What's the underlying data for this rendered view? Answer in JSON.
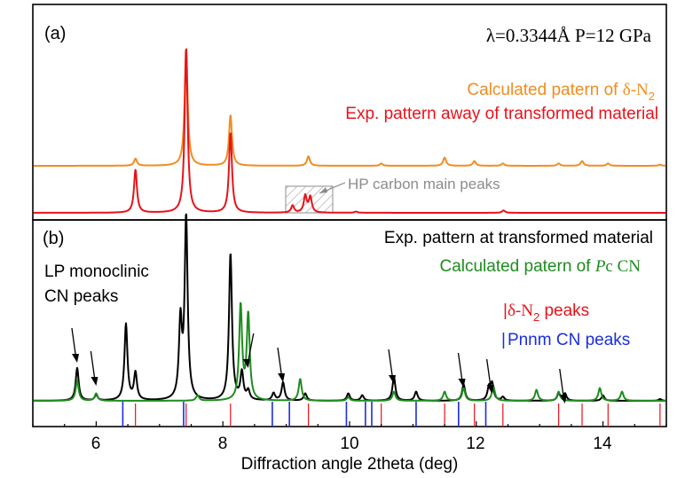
{
  "colors": {
    "calc_delta_n2": "#f28c1e",
    "exp_away": "#e8121a",
    "exp_transformed": "#000000",
    "calc_pc_cn": "#1e8c1e",
    "delta_n2_ticks": "#e8121a",
    "pnnm_ticks": "#1a2de0",
    "annotation_gray": "#8c8c8c"
  },
  "chart_data": [
    {
      "panel": "(a)",
      "type": "line",
      "header": "λ=0.3344Å P=12 GPa",
      "xlim": [
        5,
        15
      ],
      "xticks": [
        6,
        8,
        10,
        12,
        14
      ],
      "series": [
        {
          "name": "Calculated patern of δ-N2",
          "color": "#f28c1e",
          "peaks": [
            {
              "x": 6.62,
              "h": 0.06
            },
            {
              "x": 7.42,
              "h": 1.0
            },
            {
              "x": 8.12,
              "h": 0.43
            },
            {
              "x": 9.35,
              "h": 0.08
            },
            {
              "x": 10.5,
              "h": 0.02
            },
            {
              "x": 11.5,
              "h": 0.07
            },
            {
              "x": 11.97,
              "h": 0.04
            },
            {
              "x": 12.42,
              "h": 0.02
            },
            {
              "x": 13.3,
              "h": 0.02
            },
            {
              "x": 13.67,
              "h": 0.04
            },
            {
              "x": 14.08,
              "h": 0.02
            },
            {
              "x": 14.9,
              "h": 0.01
            }
          ]
        },
        {
          "name": "Exp. pattern  away of transformed material",
          "color": "#e8121a",
          "peaks": [
            {
              "x": 6.62,
              "h": 0.36
            },
            {
              "x": 7.42,
              "h": 1.38
            },
            {
              "x": 8.12,
              "h": 0.67
            },
            {
              "x": 9.1,
              "h": 0.06
            },
            {
              "x": 9.3,
              "h": 0.14
            },
            {
              "x": 9.38,
              "h": 0.13
            },
            {
              "x": 10.1,
              "h": 0.01
            },
            {
              "x": 12.43,
              "h": 0.02
            }
          ]
        }
      ],
      "annotations": [
        "HP carbon main peaks"
      ]
    },
    {
      "panel": "(b)",
      "type": "line",
      "xlabel": "Diffraction angle 2theta (deg)",
      "xlim": [
        5,
        15
      ],
      "xticks": [
        6,
        8,
        10,
        12,
        14
      ],
      "series": [
        {
          "name": "Exp. pattern at transformed material",
          "color": "#000000",
          "peaks": [
            {
              "x": 5.7,
              "h": 0.18
            },
            {
              "x": 6.0,
              "h": 0.03
            },
            {
              "x": 6.47,
              "h": 0.42
            },
            {
              "x": 6.62,
              "h": 0.15
            },
            {
              "x": 7.33,
              "h": 0.42
            },
            {
              "x": 7.42,
              "h": 1.0
            },
            {
              "x": 8.12,
              "h": 0.81
            },
            {
              "x": 8.3,
              "h": 0.15
            },
            {
              "x": 8.4,
              "h": 0.05
            },
            {
              "x": 8.8,
              "h": 0.04
            },
            {
              "x": 8.95,
              "h": 0.1
            },
            {
              "x": 9.3,
              "h": 0.04
            },
            {
              "x": 9.98,
              "h": 0.04
            },
            {
              "x": 10.2,
              "h": 0.03
            },
            {
              "x": 10.7,
              "h": 0.13
            },
            {
              "x": 11.05,
              "h": 0.05
            },
            {
              "x": 11.8,
              "h": 0.09
            },
            {
              "x": 12.2,
              "h": 0.07
            },
            {
              "x": 12.25,
              "h": 0.09
            },
            {
              "x": 12.42,
              "h": 0.02
            },
            {
              "x": 13.3,
              "h": 0.04
            },
            {
              "x": 13.4,
              "h": 0.04
            },
            {
              "x": 14.0,
              "h": 0.03
            },
            {
              "x": 14.9,
              "h": 0.01
            }
          ]
        },
        {
          "name": "Calculated patern of Pc CN",
          "color": "#1e8c1e",
          "peaks": [
            {
              "x": 5.7,
              "h": 0.11
            },
            {
              "x": 6.0,
              "h": 0.04
            },
            {
              "x": 7.6,
              "h": 0.03
            },
            {
              "x": 8.28,
              "h": 0.52
            },
            {
              "x": 8.4,
              "h": 0.47
            },
            {
              "x": 9.22,
              "h": 0.12
            },
            {
              "x": 9.98,
              "h": 0.02
            },
            {
              "x": 10.7,
              "h": 0.05
            },
            {
              "x": 11.5,
              "h": 0.05
            },
            {
              "x": 11.8,
              "h": 0.07
            },
            {
              "x": 12.27,
              "h": 0.08
            },
            {
              "x": 12.95,
              "h": 0.06
            },
            {
              "x": 13.3,
              "h": 0.05
            },
            {
              "x": 13.95,
              "h": 0.07
            },
            {
              "x": 14.3,
              "h": 0.05
            }
          ]
        }
      ],
      "tick_marks": {
        "delta_n2": [
          6.62,
          7.42,
          8.12,
          9.35,
          10.5,
          11.5,
          11.97,
          12.42,
          13.3,
          13.67,
          14.08,
          14.9
        ],
        "pnnm_cn": [
          6.42,
          7.38,
          8.78,
          9.05,
          9.95,
          10.25,
          10.35,
          11.05,
          11.72,
          12.15
        ]
      },
      "arrows_at": [
        5.7,
        6.0,
        8.4,
        8.95,
        10.7,
        11.8,
        12.25,
        13.4
      ],
      "annotations": [
        "LP monoclinic",
        "CN peaks",
        "δ-N2 peaks",
        "Pnnm CN peaks"
      ]
    }
  ],
  "labels": {
    "panel_a": "(a)",
    "panel_b": "(b)",
    "header": "λ=0.3344Å P=12 GPa",
    "legend_a1_prefix": "Calculated patern of ",
    "legend_a1_symbol": "δ-N",
    "legend_a1_sub": "2",
    "legend_a2": "Exp. pattern  away of transformed material",
    "hp_carbon": "HP carbon main peaks",
    "legend_b1": "Exp. pattern at transformed material",
    "legend_b2_prefix": "Calculated patern of ",
    "legend_b2_italic": "P",
    "legend_b2_suffix": "c CN",
    "lp_line1": "LP monoclinic",
    "lp_line2": "CN peaks",
    "delta_peaks_bar": "|",
    "delta_peaks_symbol": "δ-N",
    "delta_peaks_sub": "2",
    "delta_peaks_suffix": " peaks",
    "pnnm_bar": "|",
    "pnnm_text": "Pnnm CN peaks",
    "xlabel": "Diffraction angle 2theta (deg)",
    "xtick_6": "6",
    "xtick_8": "8",
    "xtick_10": "10",
    "xtick_12": "12",
    "xtick_14": "14"
  }
}
